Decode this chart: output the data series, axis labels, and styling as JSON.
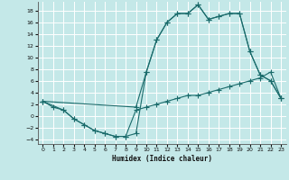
{
  "xlabel": "Humidex (Indice chaleur)",
  "xlim": [
    -0.5,
    23.5
  ],
  "ylim": [
    -4.8,
    19.5
  ],
  "yticks": [
    -4,
    -2,
    0,
    2,
    4,
    6,
    8,
    10,
    12,
    14,
    16,
    18
  ],
  "xticks": [
    0,
    1,
    2,
    3,
    4,
    5,
    6,
    7,
    8,
    9,
    10,
    11,
    12,
    13,
    14,
    15,
    16,
    17,
    18,
    19,
    20,
    21,
    22,
    23
  ],
  "bg_color": "#c4e8e8",
  "grid_color": "#aad4d4",
  "line_color": "#1a6b6b",
  "curve1_x": [
    0,
    1,
    2,
    3,
    4,
    5,
    6,
    7,
    8,
    9,
    10,
    11,
    12,
    13,
    14,
    15,
    16,
    17,
    18,
    19,
    20,
    21,
    22,
    23
  ],
  "curve1_y": [
    2.5,
    1.5,
    1.0,
    -0.5,
    -1.5,
    -2.5,
    -3.0,
    -3.5,
    -3.5,
    1.0,
    1.5,
    2.0,
    2.5,
    3.0,
    3.5,
    3.5,
    4.0,
    4.5,
    5.0,
    5.5,
    6.0,
    6.5,
    7.5,
    3.0
  ],
  "curve2_x": [
    0,
    9,
    10,
    11,
    12,
    13,
    14,
    15,
    16,
    17,
    18,
    19,
    20,
    21,
    22,
    23
  ],
  "curve2_y": [
    2.5,
    1.5,
    7.5,
    13.0,
    16.0,
    17.5,
    17.5,
    19.0,
    16.5,
    17.0,
    17.5,
    17.5,
    11.0,
    7.0,
    6.0,
    3.0
  ],
  "curve3_x": [
    0,
    2,
    3,
    4,
    5,
    6,
    7,
    8,
    9,
    10,
    11,
    12,
    13,
    14,
    15,
    16,
    17,
    18,
    19,
    20,
    21,
    22,
    23
  ],
  "curve3_y": [
    2.5,
    1.0,
    -0.5,
    -1.5,
    -2.5,
    -3.0,
    -3.5,
    -3.5,
    -3.0,
    7.5,
    13.0,
    16.0,
    17.5,
    17.5,
    19.0,
    16.5,
    17.0,
    17.5,
    17.5,
    11.0,
    7.0,
    6.0,
    3.0
  ]
}
